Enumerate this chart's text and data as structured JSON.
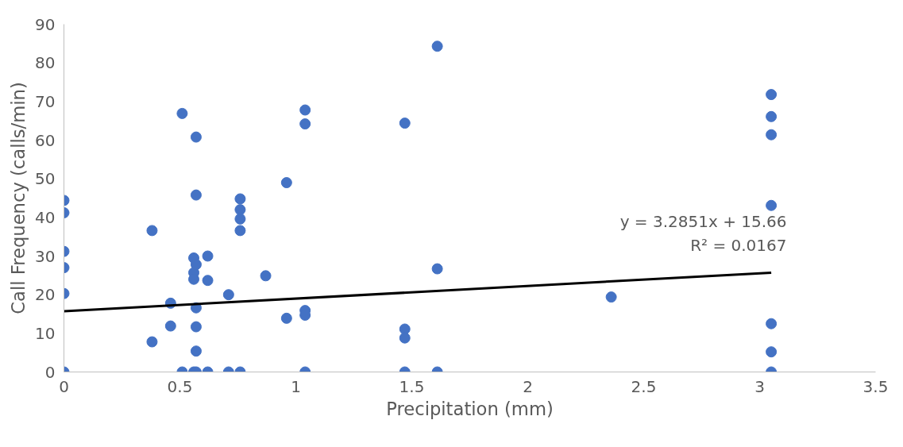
{
  "chart_data": {
    "type": "scatter",
    "xlabel": "Precipitation (mm)",
    "ylabel": "Call Frequency (calls/min)",
    "xlim": [
      0,
      3.5
    ],
    "xticks": [
      0,
      0.5,
      1,
      1.5,
      2,
      2.5,
      3,
      3.5
    ],
    "ylim": [
      0,
      90
    ],
    "yticks": [
      0,
      10,
      20,
      30,
      40,
      50,
      60,
      70,
      80,
      90
    ],
    "grid": false,
    "marker": "circle",
    "annotations": [
      "y = 3.2851x + 15.66",
      "R² = 0.0167"
    ],
    "series": [
      {
        "color": "#4472c4",
        "x": [
          0,
          0,
          0,
          0,
          0,
          0,
          0.38,
          0.38,
          0.46,
          0.46,
          0.51,
          0.51,
          0.56,
          0.56,
          0.56,
          0.56,
          0.57,
          0.57,
          0.57,
          0.57,
          0.57,
          0.57,
          0.57,
          0.62,
          0.62,
          0.62,
          0.71,
          0.71,
          0.76,
          0.76,
          0.76,
          0.76,
          0.76,
          0.87,
          0.96,
          0.96,
          1.04,
          1.04,
          1.04,
          1.04,
          1.04,
          1.47,
          1.47,
          1.47,
          1.47,
          1.61,
          1.61,
          1.61,
          2.36,
          3.05,
          3.05,
          3.05,
          3.05,
          3.05,
          3.05,
          3.05
        ],
        "values": [
          44.4,
          41.2,
          31.2,
          27,
          20.3,
          0,
          36.6,
          7.8,
          17.8,
          11.9,
          66.9,
          0,
          29.5,
          25.7,
          24,
          0,
          27.8,
          60.8,
          45.8,
          16.6,
          11.7,
          5.4,
          0,
          30,
          23.7,
          0,
          20,
          0,
          44.8,
          42,
          39.6,
          36.6,
          0,
          24.9,
          49,
          13.9,
          67.8,
          64.2,
          15.9,
          14.7,
          0,
          64.4,
          11.1,
          8.8,
          0,
          84.3,
          26.7,
          0,
          19.4,
          71.8,
          66.1,
          61.4,
          43.1,
          12.5,
          5.2,
          0
        ]
      },
      {
        "type": "line",
        "color": "#000000",
        "line_style": "solid",
        "marker": "none",
        "x": [
          0,
          3.05
        ],
        "values": [
          15.7,
          25.7
        ]
      }
    ]
  }
}
